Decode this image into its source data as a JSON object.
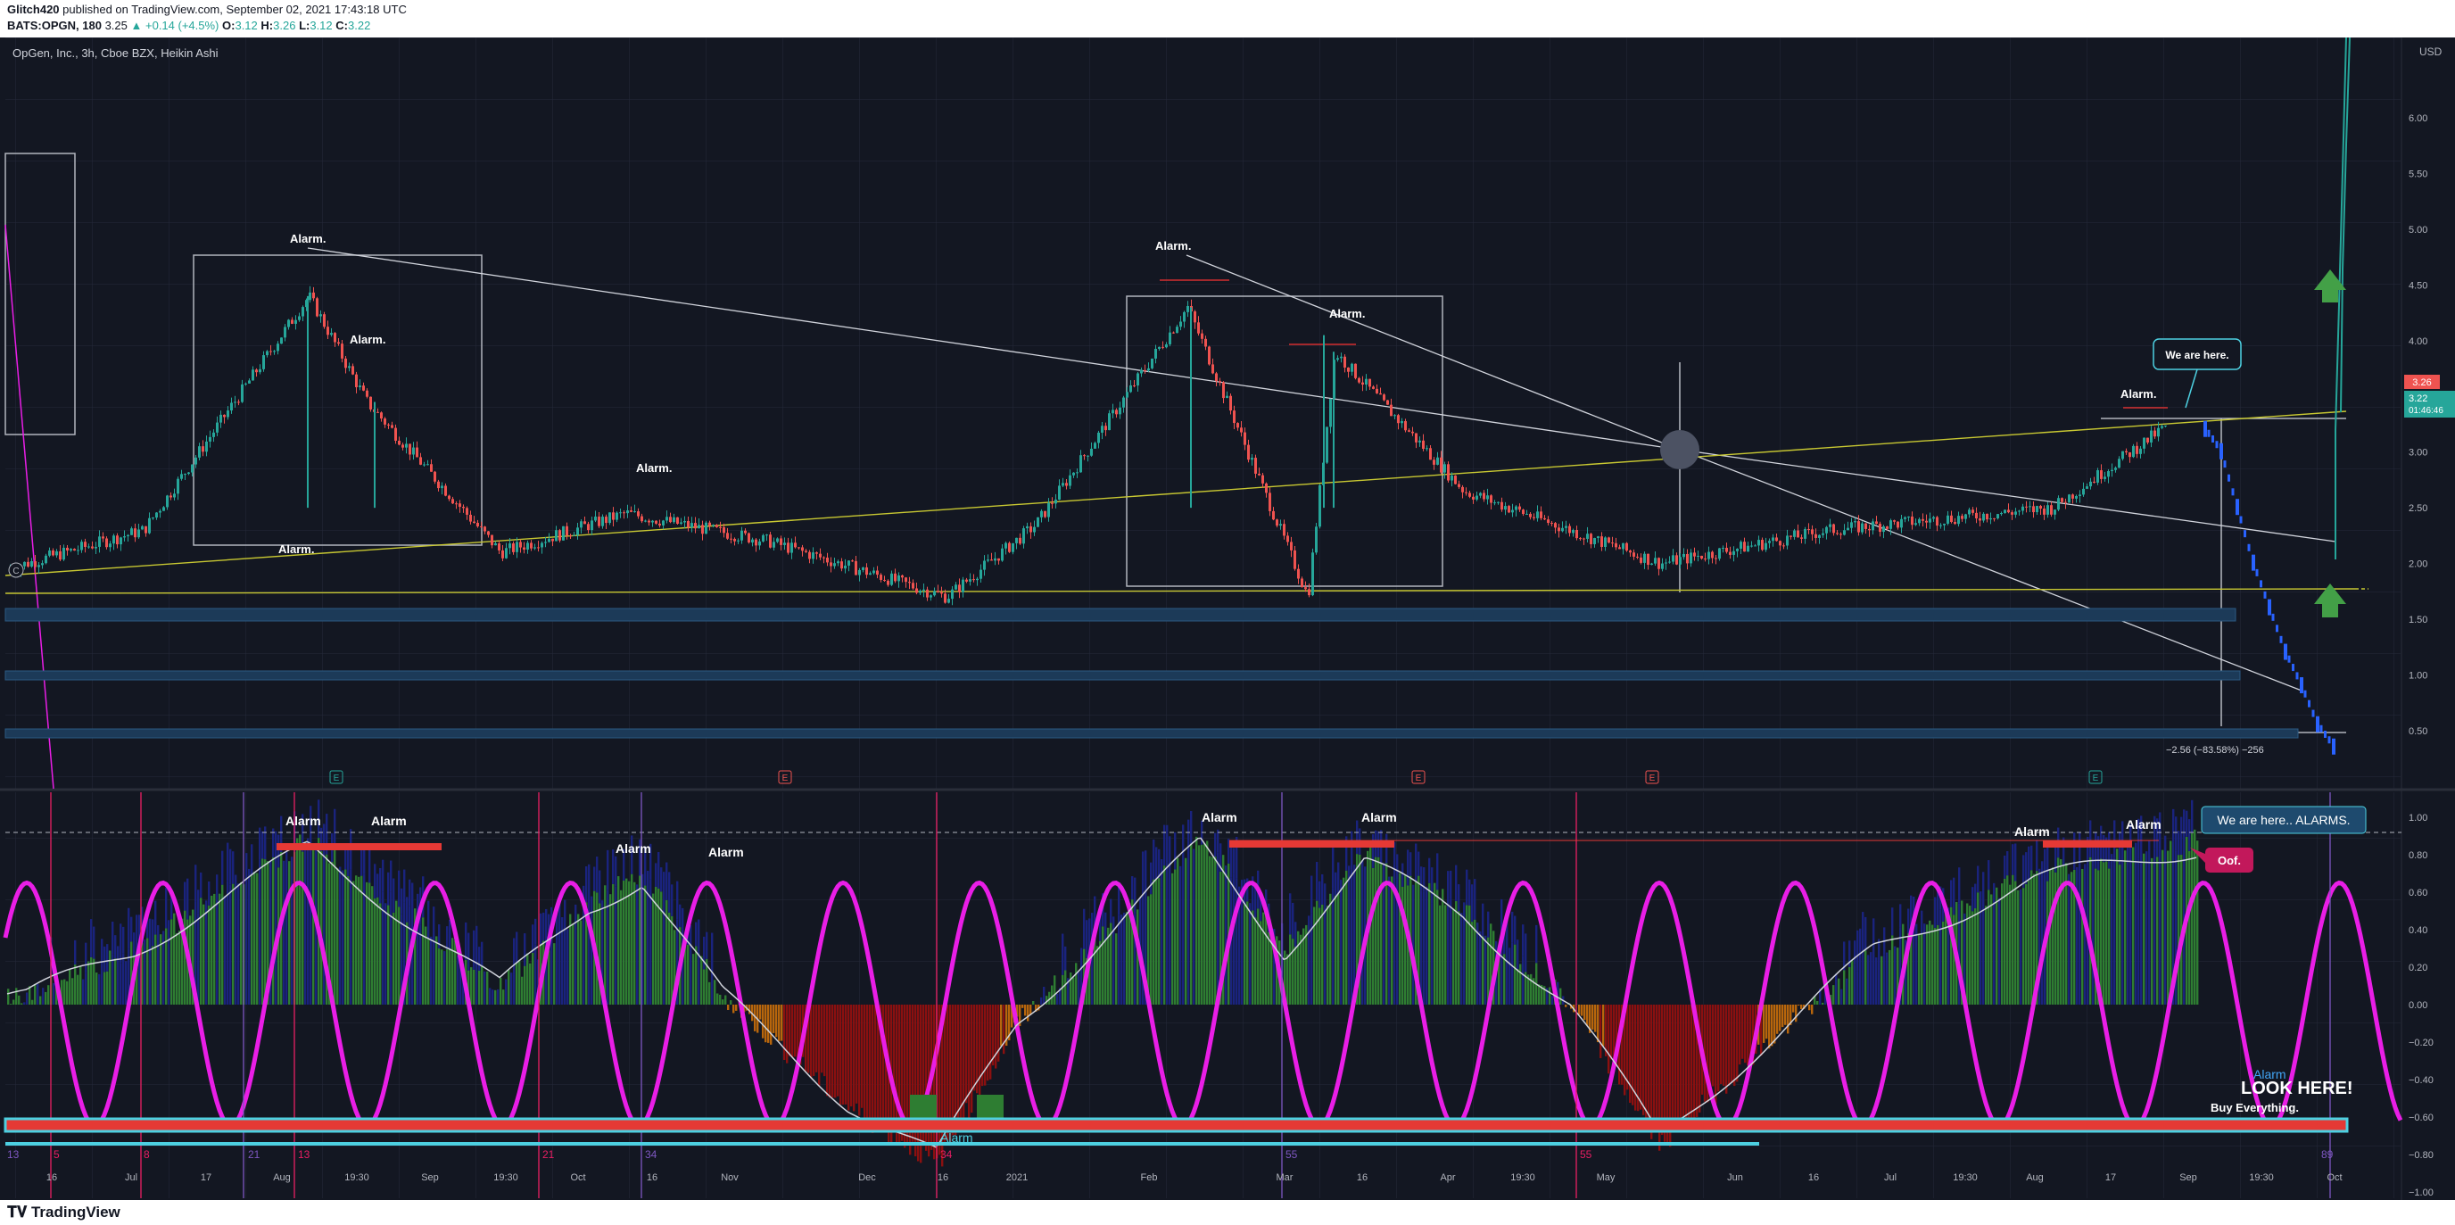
{
  "header": {
    "publisher": "Glitch420",
    "published_text": "published on TradingView.com, September 02, 2021 17:43:18 UTC",
    "symbol": "BATS:OPGN, 180",
    "last": "3.25",
    "change": "▲ +0.14 (+4.5%)",
    "o_label": "O:",
    "o": "3.12",
    "h_label": "H:",
    "h": "3.26",
    "l_label": "L:",
    "l": "3.12",
    "c_label": "C:",
    "c": "3.22"
  },
  "chart": {
    "legend": "OpGen, Inc., 3h, Cboe BZX, Heikin Ashi",
    "currency": "USD",
    "price_badge_1": "3.26",
    "price_badge_2": "3.22",
    "countdown": "01:46:46",
    "measure_label": "−2.56 (−83.58%) −256",
    "c_marker": "C"
  },
  "annotations": {
    "alarms_top": [
      "Alarm.",
      "Alarm.",
      "Alarm.",
      "Alarm.",
      "Alarm.",
      "Alarm.",
      "Alarm.",
      "Alarm."
    ],
    "we_are_here": "We are here.",
    "alarms_bottom": [
      "Alarm",
      "Alarm",
      "Alarm",
      "Alarm",
      "Alarm",
      "Alarm",
      "Alarm",
      "Alarm",
      "Alarm"
    ],
    "we_are_here_alarms": "We are here.. ALARMS.",
    "oof": "Oof.",
    "alarm_cyan_1": "Alarm",
    "alarm_cyan_2": "Alarm",
    "look_here": "LOOK  HERE!",
    "buy_everything": "Buy Everything."
  },
  "events": [
    "E",
    "E",
    "E",
    "E",
    "E"
  ],
  "fib_labels": [
    "13",
    "5",
    "8",
    "21",
    "13",
    "21",
    "34",
    "34",
    "55",
    "55",
    "89"
  ],
  "colors": {
    "background": "#131722",
    "up": "#26a69a",
    "down": "#ef5350",
    "magenta": "#e91ee6",
    "trend_yellow": "#c8c832",
    "osc_green": "#2e7d32",
    "osc_blue": "#1a237e",
    "osc_red": "#8b1010",
    "osc_orange": "#b8660c",
    "cyan": "#4dd0e1",
    "forecast_blue": "#2962ff"
  },
  "chart_data": [
    {
      "type": "candlestick",
      "title": "OpGen, Inc., 3h, Cboe BZX, Heikin Ashi",
      "x_ticks": [
        "16",
        "Jul",
        "17",
        "Aug",
        "19:30",
        "Sep",
        "19:30",
        "Oct",
        "16",
        "Nov",
        "Dec",
        "16",
        "2021",
        "Feb",
        "Mar",
        "16",
        "Apr",
        "19:30",
        "May",
        "Jun",
        "16",
        "Jul",
        "19:30",
        "Aug",
        "17",
        "Sep",
        "19:30",
        "Oct"
      ],
      "y_ticks": [
        "0.50",
        "1.00",
        "1.50",
        "2.00",
        "2.50",
        "3.00",
        "3.50",
        "4.00",
        "4.50",
        "5.00",
        "5.50",
        "6.00"
      ],
      "ylim": [
        0.3,
        6.3
      ],
      "key_points": [
        {
          "x": "Jun",
          "close": 1.95
        },
        {
          "x": "Aug",
          "close": 2.3
        },
        {
          "x": "Aug",
          "close": 4.4,
          "label": "Alarm."
        },
        {
          "x": "Aug",
          "close": 3.45,
          "label": "Alarm."
        },
        {
          "x": "Sep",
          "close": 2.1
        },
        {
          "x": "Oct",
          "close": 2.45,
          "label": "Alarm."
        },
        {
          "x": "Nov",
          "close": 2.2
        },
        {
          "x": "Dec",
          "close": 1.95
        },
        {
          "x": "16",
          "close": 1.7
        },
        {
          "x": "2021",
          "close": 2.35
        },
        {
          "x": "Feb",
          "close": 4.3,
          "label": "Alarm."
        },
        {
          "x": "Mar",
          "close": 1.7
        },
        {
          "x": "Mar",
          "close": 3.9,
          "label": "Alarm."
        },
        {
          "x": "Apr",
          "close": 2.65
        },
        {
          "x": "May",
          "close": 2.0
        },
        {
          "x": "Jun",
          "close": 2.3
        },
        {
          "x": "Aug",
          "close": 2.5
        },
        {
          "x": "Sep",
          "close": 3.25,
          "label": "Alarm."
        }
      ],
      "forecast": [
        3.2,
        3.0,
        2.5,
        2.0,
        1.6,
        1.2,
        0.9,
        0.55,
        0.35
      ]
    },
    {
      "type": "oscillator",
      "y_ticks": [
        "1.00",
        "0.80",
        "0.60",
        "0.40",
        "0.20",
        "0.00",
        "−0.20",
        "−0.40",
        "−0.60",
        "−0.80",
        "−1.00"
      ],
      "ylim": [
        -1.05,
        1.05
      ],
      "sine_amplitude": 0.65,
      "key_points": [
        {
          "x": "16",
          "value": 0.05
        },
        {
          "x": "Jul",
          "value": 0.3
        },
        {
          "x": "Aug",
          "value": 0.88
        },
        {
          "x": "Sep",
          "value": 0.4
        },
        {
          "x": "19:30",
          "value": 0.1
        },
        {
          "x": "Oct",
          "value": 0.55
        },
        {
          "x": "16",
          "value": 0.7
        },
        {
          "x": "Nov",
          "value": 0.05
        },
        {
          "x": "Dec",
          "value": -0.55
        },
        {
          "x": "16",
          "value": -0.85
        },
        {
          "x": "2021",
          "value": -0.1
        },
        {
          "x": "Feb",
          "value": 0.9
        },
        {
          "x": "Mar",
          "value": 0.3
        },
        {
          "x": "16",
          "value": 0.8
        },
        {
          "x": "Apr",
          "value": 0.5
        },
        {
          "x": "May",
          "value": 0.0
        },
        {
          "x": "May",
          "value": -0.75
        },
        {
          "x": "Jun",
          "value": -0.3
        },
        {
          "x": "Jul",
          "value": 0.3
        },
        {
          "x": "Aug",
          "value": 0.7
        },
        {
          "x": "Sep",
          "value": 0.88
        }
      ]
    }
  ],
  "footer": {
    "brand": "TradingView"
  }
}
